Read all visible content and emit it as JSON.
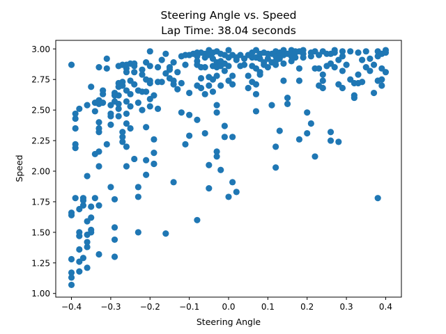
{
  "chart_data": {
    "type": "scatter",
    "title": "Steering Angle vs. Speed",
    "subtitle": "Lap Time: 38.04 seconds",
    "xlabel": "Steering Angle",
    "ylabel": "Speed",
    "xlim": [
      -0.44,
      0.44
    ],
    "ylim": [
      0.97,
      3.07
    ],
    "xticks": [
      -0.4,
      -0.3,
      -0.2,
      -0.1,
      0.0,
      0.1,
      0.2,
      0.3,
      0.4
    ],
    "xtick_labels": [
      "−0.4",
      "−0.3",
      "−0.2",
      "−0.1",
      "0.0",
      "0.1",
      "0.2",
      "0.3",
      "0.4"
    ],
    "yticks": [
      1.0,
      1.25,
      1.5,
      1.75,
      2.0,
      2.25,
      2.5,
      2.75,
      3.0
    ],
    "ytick_labels": [
      "1.00",
      "1.25",
      "1.50",
      "1.75",
      "2.00",
      "2.25",
      "2.50",
      "2.75",
      "3.00"
    ],
    "grid": false,
    "marker_color": "#1f77b4",
    "points": [
      [
        -0.4,
        1.07
      ],
      [
        -0.4,
        1.13
      ],
      [
        -0.4,
        1.17
      ],
      [
        -0.4,
        1.28
      ],
      [
        -0.4,
        1.64
      ],
      [
        -0.4,
        1.66
      ],
      [
        -0.39,
        1.78
      ],
      [
        -0.39,
        2.19
      ],
      [
        -0.39,
        2.22
      ],
      [
        -0.39,
        2.35
      ],
      [
        -0.39,
        2.43
      ],
      [
        -0.39,
        2.47
      ],
      [
        -0.4,
        2.87
      ],
      [
        -0.38,
        1.18
      ],
      [
        -0.38,
        1.26
      ],
      [
        -0.38,
        1.36
      ],
      [
        -0.38,
        1.47
      ],
      [
        -0.38,
        1.5
      ],
      [
        -0.38,
        1.69
      ],
      [
        -0.37,
        1.72
      ],
      [
        -0.37,
        1.76
      ],
      [
        -0.37,
        1.78
      ],
      [
        -0.37,
        1.29
      ],
      [
        -0.38,
        2.51
      ],
      [
        -0.36,
        1.21
      ],
      [
        -0.36,
        1.38
      ],
      [
        -0.36,
        1.42
      ],
      [
        -0.36,
        1.48
      ],
      [
        -0.36,
        1.59
      ],
      [
        -0.36,
        1.96
      ],
      [
        -0.36,
        2.54
      ],
      [
        -0.35,
        2.69
      ],
      [
        -0.35,
        1.5
      ],
      [
        -0.35,
        1.52
      ],
      [
        -0.35,
        1.62
      ],
      [
        -0.35,
        1.71
      ],
      [
        -0.34,
        2.14
      ],
      [
        -0.34,
        2.49
      ],
      [
        -0.34,
        2.56
      ],
      [
        -0.33,
        2.58
      ],
      [
        -0.34,
        1.78
      ],
      [
        -0.33,
        1.32
      ],
      [
        -0.33,
        1.72
      ],
      [
        -0.33,
        2.04
      ],
      [
        -0.33,
        2.16
      ],
      [
        -0.33,
        2.32
      ],
      [
        -0.33,
        2.35
      ],
      [
        -0.33,
        2.4
      ],
      [
        -0.33,
        2.55
      ],
      [
        -0.32,
        2.56
      ],
      [
        -0.32,
        2.63
      ],
      [
        -0.32,
        2.66
      ],
      [
        -0.33,
        2.85
      ],
      [
        -0.31,
        2.22
      ],
      [
        -0.31,
        2.84
      ],
      [
        -0.31,
        2.92
      ],
      [
        -0.3,
        1.87
      ],
      [
        -0.3,
        2.38
      ],
      [
        -0.3,
        2.45
      ],
      [
        -0.3,
        2.47
      ],
      [
        -0.3,
        2.54
      ],
      [
        -0.29,
        2.57
      ],
      [
        -0.29,
        2.64
      ],
      [
        -0.29,
        2.62
      ],
      [
        -0.29,
        1.54
      ],
      [
        -0.29,
        1.44
      ],
      [
        -0.29,
        1.3
      ],
      [
        -0.29,
        1.77
      ],
      [
        -0.28,
        2.45
      ],
      [
        -0.28,
        2.51
      ],
      [
        -0.28,
        2.62
      ],
      [
        -0.28,
        2.69
      ],
      [
        -0.28,
        2.72
      ],
      [
        -0.28,
        2.86
      ],
      [
        -0.28,
        2.55
      ],
      [
        -0.27,
        2.87
      ],
      [
        -0.27,
        2.73
      ],
      [
        -0.27,
        2.7
      ],
      [
        -0.27,
        2.32
      ],
      [
        -0.27,
        2.28
      ],
      [
        -0.27,
        2.24
      ],
      [
        -0.26,
        2.04
      ],
      [
        -0.26,
        2.2
      ],
      [
        -0.26,
        2.39
      ],
      [
        -0.26,
        2.47
      ],
      [
        -0.26,
        2.57
      ],
      [
        -0.26,
        2.66
      ],
      [
        -0.26,
        2.81
      ],
      [
        -0.26,
        2.84
      ],
      [
        -0.26,
        2.87
      ],
      [
        -0.25,
        2.88
      ],
      [
        -0.25,
        2.74
      ],
      [
        -0.25,
        2.63
      ],
      [
        -0.25,
        2.35
      ],
      [
        -0.25,
        2.53
      ],
      [
        -0.24,
        2.1
      ],
      [
        -0.24,
        2.86
      ],
      [
        -0.24,
        2.88
      ],
      [
        -0.24,
        2.81
      ],
      [
        -0.24,
        2.71
      ],
      [
        -0.23,
        1.87
      ],
      [
        -0.23,
        1.79
      ],
      [
        -0.23,
        1.5
      ],
      [
        -0.23,
        2.66
      ],
      [
        -0.23,
        2.56
      ],
      [
        -0.22,
        2.65
      ],
      [
        -0.22,
        2.79
      ],
      [
        -0.22,
        2.83
      ],
      [
        -0.22,
        2.5
      ],
      [
        -0.21,
        2.65
      ],
      [
        -0.21,
        2.36
      ],
      [
        -0.21,
        2.09
      ],
      [
        -0.21,
        1.97
      ],
      [
        -0.21,
        2.75
      ],
      [
        -0.21,
        2.89
      ],
      [
        -0.2,
        2.86
      ],
      [
        -0.2,
        2.59
      ],
      [
        -0.2,
        2.53
      ],
      [
        -0.2,
        2.72
      ],
      [
        -0.2,
        2.74
      ],
      [
        -0.2,
        2.98
      ],
      [
        -0.19,
        2.62
      ],
      [
        -0.19,
        2.06
      ],
      [
        -0.19,
        2.15
      ],
      [
        -0.19,
        2.26
      ],
      [
        -0.19,
        2.06
      ],
      [
        -0.18,
        2.51
      ],
      [
        -0.18,
        2.73
      ],
      [
        -0.18,
        2.85
      ],
      [
        -0.17,
        2.91
      ],
      [
        -0.17,
        2.73
      ],
      [
        -0.16,
        2.8
      ],
      [
        -0.16,
        2.96
      ],
      [
        -0.16,
        1.49
      ],
      [
        -0.15,
        2.76
      ],
      [
        -0.15,
        2.85
      ],
      [
        -0.15,
        2.83
      ],
      [
        -0.14,
        2.89
      ],
      [
        -0.14,
        2.71
      ],
      [
        -0.14,
        2.74
      ],
      [
        -0.14,
        1.91
      ],
      [
        -0.13,
        2.81
      ],
      [
        -0.13,
        2.67
      ],
      [
        -0.12,
        2.72
      ],
      [
        -0.12,
        2.48
      ],
      [
        -0.12,
        2.94
      ],
      [
        -0.11,
        2.95
      ],
      [
        -0.11,
        2.87
      ],
      [
        -0.11,
        2.22
      ],
      [
        -0.1,
        2.29
      ],
      [
        -0.1,
        2.46
      ],
      [
        -0.1,
        2.64
      ],
      [
        -0.1,
        2.95
      ],
      [
        -0.09,
        2.96
      ],
      [
        -0.08,
        2.9
      ],
      [
        -0.08,
        2.97
      ],
      [
        -0.08,
        2.94
      ],
      [
        -0.08,
        2.87
      ],
      [
        -0.08,
        2.7
      ],
      [
        -0.08,
        1.6
      ],
      [
        -0.08,
        2.42
      ],
      [
        -0.07,
        2.97
      ],
      [
        -0.07,
        2.85
      ],
      [
        -0.07,
        2.76
      ],
      [
        -0.07,
        2.68
      ],
      [
        -0.06,
        2.96
      ],
      [
        -0.06,
        2.93
      ],
      [
        -0.06,
        2.85
      ],
      [
        -0.06,
        2.63
      ],
      [
        -0.06,
        2.31
      ],
      [
        -0.05,
        2.99
      ],
      [
        -0.05,
        2.95
      ],
      [
        -0.05,
        2.77
      ],
      [
        -0.05,
        2.7
      ],
      [
        -0.05,
        2.05
      ],
      [
        -0.05,
        1.86
      ],
      [
        -0.04,
        2.97
      ],
      [
        -0.04,
        2.92
      ],
      [
        -0.04,
        2.86
      ],
      [
        -0.04,
        2.75
      ],
      [
        -0.04,
        2.65
      ],
      [
        -0.03,
        2.98
      ],
      [
        -0.03,
        2.89
      ],
      [
        -0.03,
        2.85
      ],
      [
        -0.03,
        2.78
      ],
      [
        -0.03,
        2.54
      ],
      [
        -0.03,
        2.48
      ],
      [
        -0.03,
        2.16
      ],
      [
        -0.03,
        2.12
      ],
      [
        -0.02,
        2.96
      ],
      [
        -0.02,
        2.9
      ],
      [
        -0.02,
        2.86
      ],
      [
        -0.02,
        2.7
      ],
      [
        -0.02,
        2.01
      ],
      [
        -0.01,
        2.95
      ],
      [
        -0.01,
        2.88
      ],
      [
        -0.01,
        2.82
      ],
      [
        -0.01,
        2.37
      ],
      [
        -0.01,
        2.28
      ],
      [
        0.0,
        2.93
      ],
      [
        0.0,
        2.86
      ],
      [
        0.0,
        2.74
      ],
      [
        0.0,
        1.79
      ],
      [
        0.0,
        2.99
      ],
      [
        0.01,
        2.95
      ],
      [
        0.01,
        2.78
      ],
      [
        0.01,
        2.71
      ],
      [
        0.01,
        2.28
      ],
      [
        0.01,
        1.91
      ],
      [
        0.02,
        1.83
      ],
      [
        0.02,
        2.91
      ],
      [
        0.02,
        2.93
      ],
      [
        0.03,
        2.86
      ],
      [
        0.03,
        2.95
      ],
      [
        0.04,
        2.92
      ],
      [
        0.04,
        2.87
      ],
      [
        0.05,
        2.95
      ],
      [
        0.05,
        2.78
      ],
      [
        0.05,
        2.68
      ],
      [
        0.06,
        2.93
      ],
      [
        0.06,
        2.97
      ],
      [
        0.06,
        2.86
      ],
      [
        0.06,
        2.73
      ],
      [
        0.07,
        2.99
      ],
      [
        0.07,
        2.93
      ],
      [
        0.07,
        2.84
      ],
      [
        0.07,
        2.71
      ],
      [
        0.07,
        2.63
      ],
      [
        0.07,
        2.49
      ],
      [
        0.08,
        2.81
      ],
      [
        0.08,
        2.92
      ],
      [
        0.08,
        2.96
      ],
      [
        0.08,
        2.79
      ],
      [
        0.09,
        2.97
      ],
      [
        0.09,
        2.87
      ],
      [
        0.09,
        2.89
      ],
      [
        0.1,
        2.96
      ],
      [
        0.1,
        2.92
      ],
      [
        0.1,
        2.85
      ],
      [
        0.11,
        2.54
      ],
      [
        0.11,
        2.96
      ],
      [
        0.11,
        2.89
      ],
      [
        0.12,
        2.98
      ],
      [
        0.12,
        2.94
      ],
      [
        0.12,
        2.9
      ],
      [
        0.12,
        2.87
      ],
      [
        0.12,
        2.2
      ],
      [
        0.12,
        2.03
      ],
      [
        0.13,
        2.97
      ],
      [
        0.13,
        2.92
      ],
      [
        0.13,
        2.33
      ],
      [
        0.14,
        2.99
      ],
      [
        0.14,
        2.95
      ],
      [
        0.14,
        2.88
      ],
      [
        0.14,
        2.74
      ],
      [
        0.15,
        2.96
      ],
      [
        0.15,
        2.6
      ],
      [
        0.15,
        2.55
      ],
      [
        0.16,
        2.99
      ],
      [
        0.16,
        2.94
      ],
      [
        0.16,
        2.9
      ],
      [
        0.17,
        2.98
      ],
      [
        0.17,
        2.93
      ],
      [
        0.17,
        2.97
      ],
      [
        0.18,
        2.98
      ],
      [
        0.18,
        2.74
      ],
      [
        0.18,
        2.84
      ],
      [
        0.18,
        2.26
      ],
      [
        0.19,
        2.96
      ],
      [
        0.19,
        2.93
      ],
      [
        0.19,
        2.99
      ],
      [
        0.2,
        2.48
      ],
      [
        0.2,
        2.31
      ],
      [
        0.21,
        2.97
      ],
      [
        0.21,
        2.94
      ],
      [
        0.21,
        2.39
      ],
      [
        0.22,
        2.84
      ],
      [
        0.22,
        2.12
      ],
      [
        0.22,
        2.98
      ],
      [
        0.23,
        2.7
      ],
      [
        0.23,
        2.84
      ],
      [
        0.23,
        2.95
      ],
      [
        0.24,
        2.74
      ],
      [
        0.24,
        2.68
      ],
      [
        0.24,
        2.79
      ],
      [
        0.24,
        2.98
      ],
      [
        0.25,
        2.86
      ],
      [
        0.25,
        2.96
      ],
      [
        0.26,
        2.32
      ],
      [
        0.26,
        2.25
      ],
      [
        0.26,
        2.88
      ],
      [
        0.26,
        2.96
      ],
      [
        0.27,
        2.97
      ],
      [
        0.27,
        2.99
      ],
      [
        0.27,
        2.85
      ],
      [
        0.28,
        2.71
      ],
      [
        0.28,
        2.24
      ],
      [
        0.28,
        2.91
      ],
      [
        0.29,
        2.98
      ],
      [
        0.29,
        2.94
      ],
      [
        0.29,
        2.82
      ],
      [
        0.29,
        2.68
      ],
      [
        0.3,
        2.87
      ],
      [
        0.31,
        2.98
      ],
      [
        0.31,
        2.75
      ],
      [
        0.32,
        2.72
      ],
      [
        0.32,
        2.62
      ],
      [
        0.32,
        2.6
      ],
      [
        0.33,
        2.97
      ],
      [
        0.33,
        2.79
      ],
      [
        0.33,
        2.72
      ],
      [
        0.34,
        2.73
      ],
      [
        0.34,
        2.91
      ],
      [
        0.35,
        2.98
      ],
      [
        0.35,
        2.85
      ],
      [
        0.36,
        2.82
      ],
      [
        0.36,
        2.92
      ],
      [
        0.37,
        2.87
      ],
      [
        0.37,
        2.64
      ],
      [
        0.38,
        2.98
      ],
      [
        0.38,
        2.94
      ],
      [
        0.38,
        2.74
      ],
      [
        0.38,
        1.78
      ],
      [
        0.39,
        2.96
      ],
      [
        0.39,
        2.84
      ],
      [
        0.39,
        2.75
      ],
      [
        0.4,
        2.99
      ],
      [
        0.4,
        2.97
      ],
      [
        0.4,
        2.81
      ],
      [
        0.39,
        2.7
      ]
    ]
  }
}
